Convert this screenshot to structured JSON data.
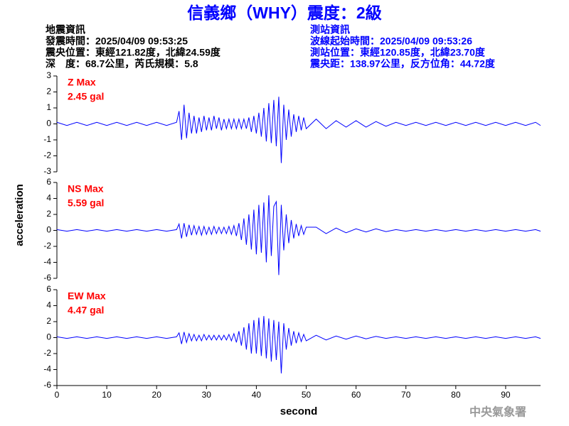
{
  "title": "信義鄉（WHY）震度：2級",
  "left_info": [
    "地震資訊",
    "發震時間：2025/04/09 09:53:25",
    "震央位置：東經121.82度，北緯24.59度",
    "深　度：68.7公里，芮氏規模：5.8"
  ],
  "right_info": [
    "測站資訊",
    "波線起始時間：2025/04/09 09:53:26",
    "測站位置：東經120.85度，北緯23.70度",
    "震央距：138.97公里，反方位角：44.72度"
  ],
  "y_label": "acceleration",
  "watermark": "中央氣象署",
  "chart_data": [
    {
      "type": "line",
      "annotations": [
        "Z Max",
        "2.45 gal"
      ],
      "xlim": [
        0,
        97
      ],
      "ylim": [
        -3,
        3
      ],
      "yticks": [
        -3,
        -2,
        -1,
        0,
        1,
        2,
        3
      ],
      "x": [
        0,
        2,
        4,
        6,
        8,
        10,
        12,
        14,
        16,
        18,
        20,
        22,
        24,
        24.5,
        25,
        25.5,
        26,
        26.5,
        27,
        27.5,
        28,
        28.5,
        29,
        29.5,
        30,
        30.5,
        31,
        31.5,
        32,
        32.5,
        33,
        33.5,
        34,
        34.5,
        35,
        35.5,
        36,
        36.5,
        37,
        37.5,
        38,
        38.5,
        39,
        39.5,
        40,
        40.5,
        41,
        41.5,
        42,
        42.5,
        43,
        43.5,
        44,
        44.5,
        45,
        45.5,
        46,
        46.5,
        47,
        47.5,
        48,
        48.5,
        49,
        49.5,
        50,
        52,
        54,
        56,
        58,
        60,
        62,
        64,
        66,
        68,
        70,
        72,
        74,
        76,
        78,
        80,
        82,
        84,
        86,
        88,
        90,
        92,
        94,
        96,
        97
      ],
      "series": [
        {
          "color": "#0000ff",
          "values": [
            0.1,
            -0.1,
            0.1,
            -0.1,
            0.1,
            -0.1,
            0.1,
            -0.1,
            0.1,
            -0.1,
            0.1,
            -0.1,
            0.1,
            0.8,
            -1.0,
            1.2,
            -0.9,
            0.7,
            -0.6,
            0.5,
            -0.6,
            0.4,
            -0.5,
            0.5,
            -0.4,
            0.4,
            -0.4,
            0.5,
            -0.3,
            0.4,
            -0.4,
            0.3,
            -0.3,
            0.3,
            -0.3,
            0.3,
            -0.3,
            0.3,
            -0.3,
            0.3,
            -0.3,
            0.4,
            -0.5,
            0.5,
            -0.6,
            0.7,
            -0.8,
            1.0,
            -1.1,
            1.3,
            -1.2,
            1.5,
            -1.4,
            1.7,
            -2.45,
            1.2,
            -1.0,
            0.9,
            -0.8,
            0.6,
            -0.5,
            0.5,
            -0.4,
            0.4,
            -0.3,
            0.3,
            -0.3,
            0.2,
            -0.2,
            0.2,
            -0.2,
            0.15,
            -0.15,
            0.1,
            -0.1,
            0.1,
            -0.1,
            0.1,
            -0.1,
            0.1,
            -0.1,
            0.1,
            -0.1,
            0.1,
            -0.1,
            0.1,
            -0.1,
            0.1,
            -0.1
          ]
        }
      ]
    },
    {
      "type": "line",
      "annotations": [
        "NS Max",
        "5.59 gal"
      ],
      "xlim": [
        0,
        97
      ],
      "ylim": [
        -6,
        6
      ],
      "yticks": [
        -6,
        -4,
        -2,
        0,
        2,
        4,
        6
      ],
      "x": [
        0,
        2,
        4,
        6,
        8,
        10,
        12,
        14,
        16,
        18,
        20,
        22,
        24,
        24.5,
        25,
        25.5,
        26,
        26.5,
        27,
        27.5,
        28,
        28.5,
        29,
        29.5,
        30,
        30.5,
        31,
        31.5,
        32,
        32.5,
        33,
        33.5,
        34,
        34.5,
        35,
        35.5,
        36,
        36.5,
        37,
        37.5,
        38,
        38.5,
        39,
        39.5,
        40,
        40.5,
        41,
        41.5,
        42,
        42.5,
        43,
        43.5,
        44,
        44.5,
        45,
        45.5,
        46,
        46.5,
        47,
        47.5,
        48,
        48.5,
        49,
        49.5,
        50,
        52,
        54,
        56,
        58,
        60,
        62,
        64,
        66,
        68,
        70,
        72,
        74,
        76,
        78,
        80,
        82,
        84,
        86,
        88,
        90,
        92,
        94,
        96,
        97
      ],
      "series": [
        {
          "color": "#0000ff",
          "values": [
            0.1,
            -0.1,
            0.1,
            -0.1,
            0.1,
            -0.1,
            0.1,
            -0.1,
            0.1,
            -0.1,
            0.1,
            -0.1,
            0.1,
            0.8,
            -1.0,
            0.9,
            -0.8,
            0.7,
            -0.6,
            0.6,
            -0.5,
            0.5,
            -0.6,
            0.5,
            -0.5,
            0.4,
            -0.5,
            0.5,
            -0.4,
            0.4,
            -0.4,
            0.4,
            -0.4,
            0.5,
            -0.5,
            0.6,
            -0.7,
            0.9,
            -1.2,
            1.5,
            -1.8,
            2.0,
            -2.4,
            2.6,
            -3.0,
            3.2,
            -2.8,
            3.5,
            -4.0,
            4.4,
            -3.2,
            3.0,
            3.6,
            -5.59,
            3.2,
            -2.5,
            2.0,
            -1.6,
            1.3,
            -1.0,
            0.8,
            -0.7,
            0.6,
            -0.5,
            0.4,
            0.4,
            -0.4,
            0.3,
            -0.3,
            0.2,
            -0.2,
            0.2,
            -0.15,
            0.1,
            -0.1,
            0.1,
            -0.1,
            0.1,
            -0.1,
            0.1,
            -0.1,
            0.1,
            -0.1,
            0.1,
            -0.1,
            0.1,
            -0.1,
            0.1,
            -0.1
          ]
        }
      ]
    },
    {
      "type": "line",
      "annotations": [
        "EW Max",
        "4.47 gal"
      ],
      "xlim": [
        0,
        97
      ],
      "ylim": [
        -6,
        6
      ],
      "yticks": [
        -6,
        -4,
        -2,
        0,
        2,
        4,
        6
      ],
      "xticks": [
        0,
        10,
        20,
        30,
        40,
        50,
        60,
        70,
        80,
        90
      ],
      "x_label": "second",
      "x": [
        0,
        2,
        4,
        6,
        8,
        10,
        12,
        14,
        16,
        18,
        20,
        22,
        24,
        24.5,
        25,
        25.5,
        26,
        26.5,
        27,
        27.5,
        28,
        28.5,
        29,
        29.5,
        30,
        30.5,
        31,
        31.5,
        32,
        32.5,
        33,
        33.5,
        34,
        34.5,
        35,
        35.5,
        36,
        36.5,
        37,
        37.5,
        38,
        38.5,
        39,
        39.5,
        40,
        40.5,
        41,
        41.5,
        42,
        42.5,
        43,
        43.5,
        44,
        44.5,
        45,
        45.5,
        46,
        46.5,
        47,
        47.5,
        48,
        48.5,
        49,
        49.5,
        50,
        52,
        54,
        56,
        58,
        60,
        62,
        64,
        66,
        68,
        70,
        72,
        74,
        76,
        78,
        80,
        82,
        84,
        86,
        88,
        90,
        92,
        94,
        96,
        97
      ],
      "series": [
        {
          "color": "#0000ff",
          "values": [
            0.1,
            -0.1,
            0.1,
            -0.1,
            0.1,
            -0.1,
            0.1,
            -0.1,
            0.1,
            -0.1,
            0.1,
            -0.1,
            0.1,
            0.6,
            -0.8,
            0.7,
            -0.6,
            0.5,
            -0.4,
            0.4,
            -0.4,
            0.3,
            -0.4,
            0.4,
            -0.3,
            0.3,
            -0.3,
            0.3,
            -0.3,
            0.3,
            -0.3,
            0.3,
            -0.3,
            0.4,
            -0.4,
            0.5,
            -0.6,
            0.8,
            -1.0,
            1.3,
            -1.5,
            1.8,
            -2.0,
            2.2,
            -2.0,
            2.5,
            -2.3,
            2.7,
            -2.6,
            2.4,
            -3.0,
            2.2,
            -2.8,
            2.0,
            -4.47,
            1.8,
            -1.5,
            1.2,
            -1.0,
            0.8,
            -0.7,
            0.6,
            -0.5,
            0.4,
            -0.4,
            0.3,
            -0.3,
            0.2,
            -0.2,
            0.2,
            -0.15,
            0.15,
            -0.1,
            0.1,
            -0.1,
            0.1,
            -0.1,
            0.1,
            -0.1,
            0.1,
            -0.1,
            0.1,
            -0.1,
            0.1,
            -0.1,
            0.1,
            -0.1,
            0.1,
            -0.1
          ]
        }
      ]
    }
  ]
}
